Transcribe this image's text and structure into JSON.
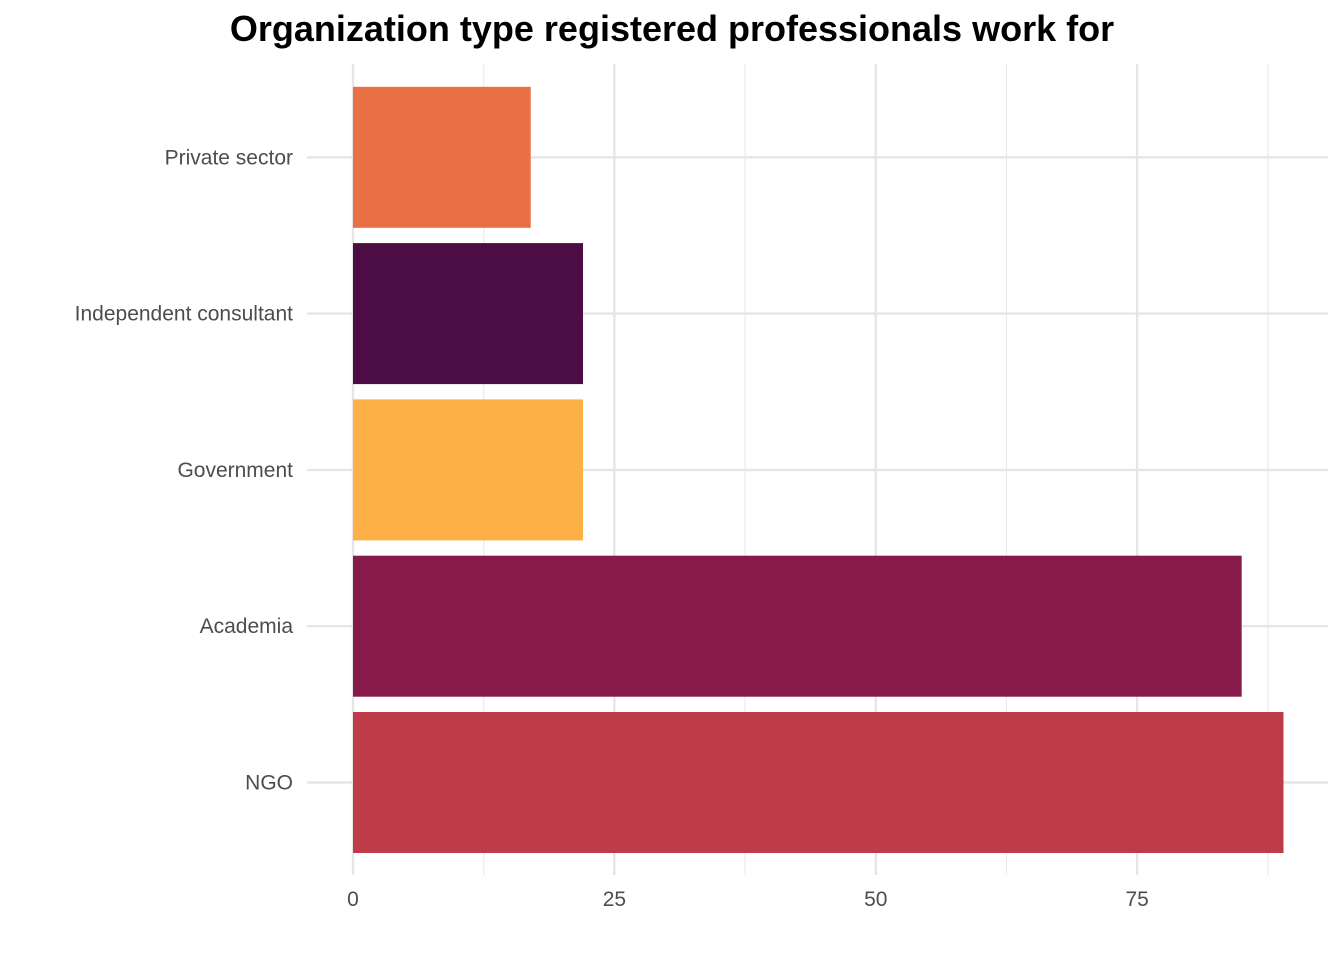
{
  "chart_data": {
    "type": "bar",
    "orientation": "horizontal",
    "title": "Organization type registered professionals work for",
    "xlabel": "",
    "ylabel": "",
    "categories": [
      "NGO",
      "Academia",
      "Government",
      "Independent consultant",
      "Private sector"
    ],
    "values": [
      89,
      85,
      22,
      22,
      17
    ],
    "colors": [
      "#BE3C4A",
      "#861A4B",
      "#FCB045",
      "#4B0D44",
      "#E97044"
    ],
    "xlim": [
      0,
      89
    ],
    "xticks": [
      0,
      25,
      50,
      75
    ],
    "grid": true,
    "legend": "none"
  }
}
